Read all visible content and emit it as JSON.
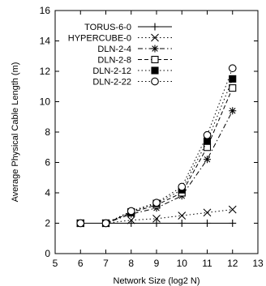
{
  "chart_data": {
    "type": "line",
    "xlabel": "Network Size (log2 N)",
    "ylabel": "Average Physical Cable Length (m)",
    "xlim": [
      5,
      13
    ],
    "ylim": [
      0,
      16
    ],
    "xticks": [
      5,
      6,
      7,
      8,
      9,
      10,
      11,
      12,
      13
    ],
    "yticks": [
      0,
      2,
      4,
      6,
      8,
      10,
      12,
      14,
      16
    ],
    "x": [
      6,
      7,
      8,
      9,
      10,
      11,
      12
    ],
    "grid": false,
    "legend_position": "top-left",
    "series": [
      {
        "name": "TORUS-6-0",
        "marker": "plus",
        "dash": "solid",
        "values": [
          2.0,
          2.0,
          2.0,
          2.0,
          2.0,
          2.0,
          2.0
        ]
      },
      {
        "name": "HYPERCUBE-0",
        "marker": "cross",
        "dash": "dotted",
        "values": [
          2.0,
          2.0,
          2.2,
          2.3,
          2.5,
          2.7,
          2.9
        ]
      },
      {
        "name": "DLN-2-4",
        "marker": "asterisk",
        "dash": "dashdot",
        "values": [
          2.0,
          2.0,
          2.6,
          3.0,
          3.8,
          6.2,
          9.4
        ]
      },
      {
        "name": "DLN-2-8",
        "marker": "square-open",
        "dash": "dashed",
        "values": [
          2.0,
          2.0,
          2.7,
          3.2,
          4.0,
          7.0,
          10.9
        ]
      },
      {
        "name": "DLN-2-12",
        "marker": "square-filled",
        "dash": "dotted",
        "values": [
          2.0,
          2.0,
          2.75,
          3.3,
          4.2,
          7.4,
          11.5
        ]
      },
      {
        "name": "DLN-2-22",
        "marker": "circle-open",
        "dash": "dotted",
        "values": [
          2.0,
          2.0,
          2.8,
          3.35,
          4.4,
          7.8,
          12.2
        ]
      }
    ]
  }
}
